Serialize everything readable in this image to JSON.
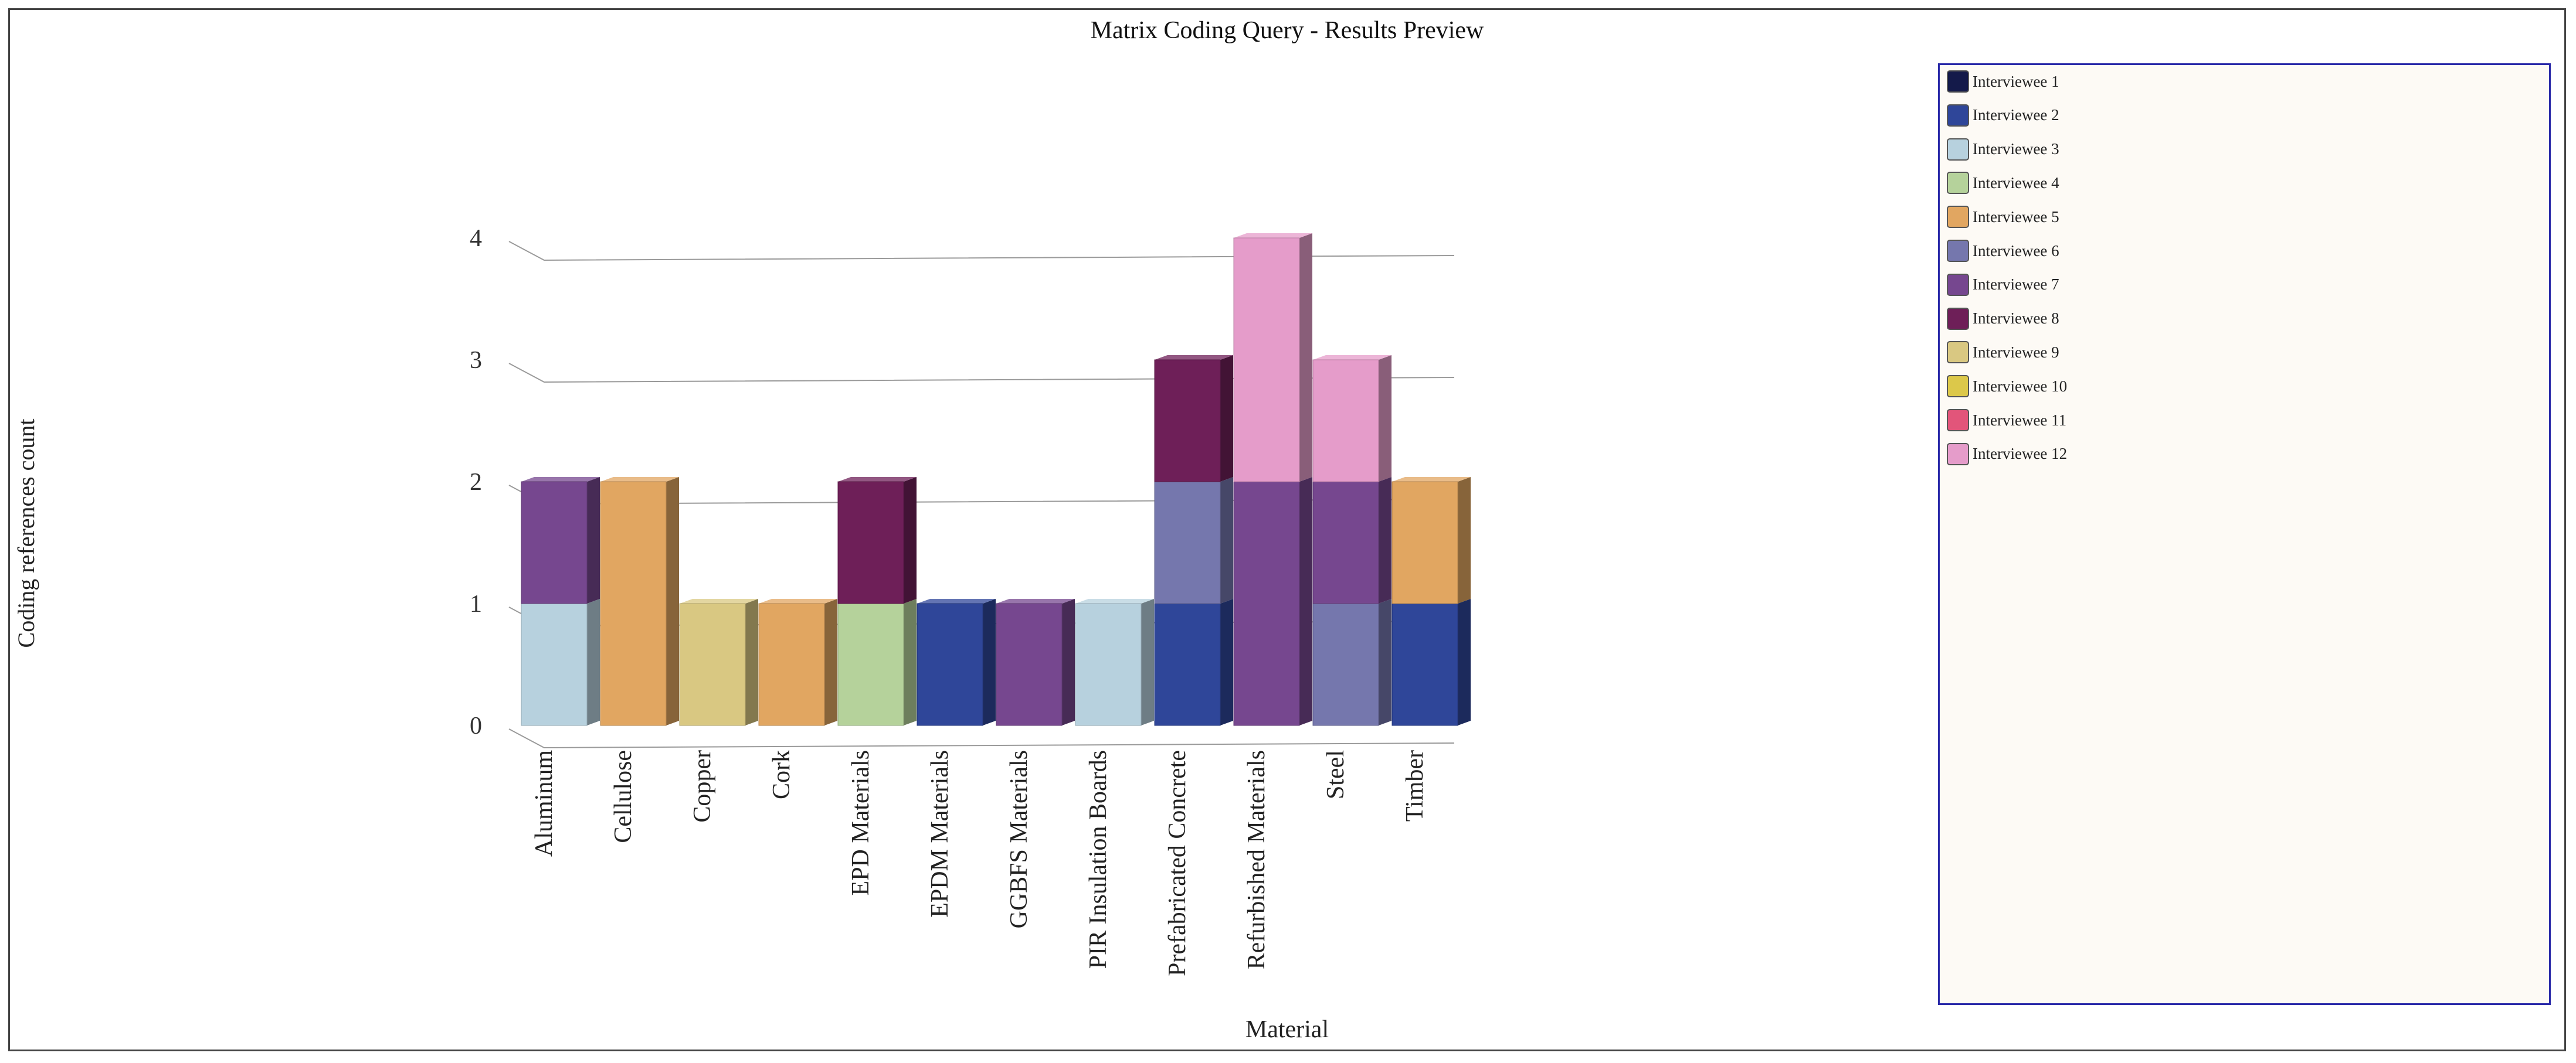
{
  "chart_data": {
    "type": "bar",
    "stacked": true,
    "three_d": true,
    "title": "Matrix Coding Query - Results Preview",
    "xlabel": "Material",
    "ylabel": "Coding references count",
    "ylim": [
      0,
      4
    ],
    "yticks": [
      "0",
      "1",
      "2",
      "3",
      "4"
    ],
    "grid": true,
    "legend_position": "right",
    "categories": [
      "Aluminum",
      "Cellulose",
      "Copper",
      "Cork",
      "EPD Materials",
      "EPDM Materials",
      "GGBFS Materials",
      "PIR Insulation Boards",
      "Prefabricated Concrete",
      "Refurbished Materials",
      "Steel",
      "Timber"
    ],
    "series": [
      {
        "name": "Interviewee 1",
        "color": "#141a4a",
        "values": [
          0,
          0,
          0,
          0,
          0,
          0,
          0,
          0,
          0,
          0,
          0,
          0
        ]
      },
      {
        "name": "Interviewee 2",
        "color": "#2f4699",
        "values": [
          0,
          0,
          0,
          0,
          0,
          1,
          0,
          0,
          1,
          0,
          0,
          1
        ]
      },
      {
        "name": "Interviewee 3",
        "color": "#b7d1de",
        "values": [
          1,
          0,
          0,
          0,
          0,
          0,
          0,
          1,
          0,
          0,
          0,
          0
        ]
      },
      {
        "name": "Interviewee 4",
        "color": "#b5d29b",
        "values": [
          0,
          0,
          0,
          0,
          1,
          0,
          0,
          0,
          0,
          0,
          0,
          0
        ]
      },
      {
        "name": "Interviewee 5",
        "color": "#e1a661",
        "values": [
          0,
          2,
          0,
          1,
          0,
          0,
          0,
          0,
          0,
          0,
          0,
          1
        ]
      },
      {
        "name": "Interviewee 6",
        "color": "#7577ad",
        "values": [
          0,
          0,
          0,
          0,
          0,
          0,
          0,
          0,
          1,
          0,
          1,
          0
        ]
      },
      {
        "name": "Interviewee 7",
        "color": "#76478f",
        "values": [
          1,
          0,
          0,
          0,
          0,
          0,
          1,
          0,
          0,
          2,
          1,
          0
        ]
      },
      {
        "name": "Interviewee 8",
        "color": "#6e1f58",
        "values": [
          0,
          0,
          0,
          0,
          1,
          0,
          0,
          0,
          1,
          0,
          0,
          0
        ]
      },
      {
        "name": "Interviewee 9",
        "color": "#d9c882",
        "values": [
          0,
          0,
          1,
          0,
          0,
          0,
          0,
          0,
          0,
          0,
          0,
          0
        ]
      },
      {
        "name": "Interviewee 10",
        "color": "#dcc84a",
        "values": [
          0,
          0,
          0,
          0,
          0,
          0,
          0,
          0,
          0,
          0,
          0,
          0
        ]
      },
      {
        "name": "Interviewee 11",
        "color": "#e2557a",
        "values": [
          0,
          0,
          0,
          0,
          0,
          0,
          0,
          0,
          0,
          0,
          0,
          0
        ]
      },
      {
        "name": "Interviewee 12",
        "color": "#e59cca",
        "values": [
          0,
          0,
          0,
          0,
          0,
          0,
          0,
          0,
          0,
          2,
          1,
          0
        ]
      }
    ]
  }
}
